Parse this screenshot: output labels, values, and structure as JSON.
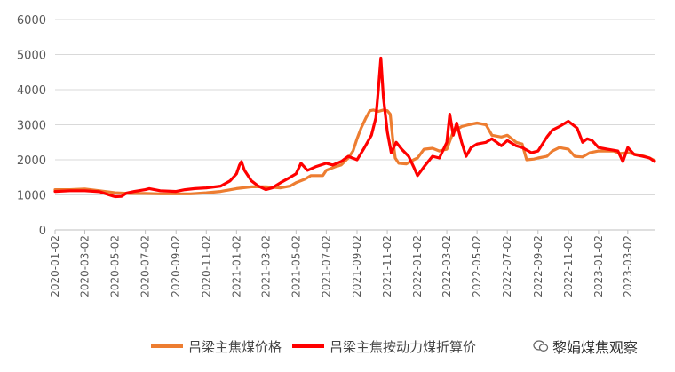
{
  "chart_data": {
    "type": "line",
    "title": "",
    "xlabel": "",
    "ylabel": "",
    "ylim": [
      0,
      6000
    ],
    "yticks": [
      0,
      1000,
      2000,
      3000,
      4000,
      5000,
      6000
    ],
    "xtick_labels": [
      "2020-01-02",
      "2020-03-02",
      "2020-05-02",
      "2020-07-02",
      "2020-09-02",
      "2020-11-02",
      "2021-01-02",
      "2021-03-02",
      "2021-05-02",
      "2021-07-02",
      "2021-09-02",
      "2021-11-02",
      "2022-01-02",
      "2022-03-02",
      "2022-05-02",
      "2022-07-02",
      "2022-09-02",
      "2022-11-02",
      "2023-01-02",
      "2023-03-02"
    ],
    "x_range": [
      "2020-01-02",
      "2023-04-25"
    ],
    "grid": "horizontal",
    "legend_position": "bottom",
    "series": [
      {
        "name": "吕梁主焦煤价格",
        "color": "#ED7D31",
        "points": [
          [
            "2020-01-02",
            1150
          ],
          [
            "2020-02-01",
            1150
          ],
          [
            "2020-03-02",
            1170
          ],
          [
            "2020-04-01",
            1120
          ],
          [
            "2020-05-02",
            1060
          ],
          [
            "2020-06-01",
            1040
          ],
          [
            "2020-07-02",
            1040
          ],
          [
            "2020-08-01",
            1030
          ],
          [
            "2020-09-02",
            1030
          ],
          [
            "2020-10-01",
            1030
          ],
          [
            "2020-11-02",
            1060
          ],
          [
            "2020-12-01",
            1100
          ],
          [
            "2021-01-02",
            1180
          ],
          [
            "2021-02-01",
            1230
          ],
          [
            "2021-03-02",
            1230
          ],
          [
            "2021-04-01",
            1200
          ],
          [
            "2021-04-20",
            1250
          ],
          [
            "2021-05-02",
            1350
          ],
          [
            "2021-05-20",
            1450
          ],
          [
            "2021-06-01",
            1550
          ],
          [
            "2021-06-25",
            1550
          ],
          [
            "2021-07-02",
            1700
          ],
          [
            "2021-07-20",
            1800
          ],
          [
            "2021-08-01",
            1850
          ],
          [
            "2021-08-15",
            2050
          ],
          [
            "2021-08-25",
            2250
          ],
          [
            "2021-09-02",
            2600
          ],
          [
            "2021-09-10",
            2900
          ],
          [
            "2021-09-20",
            3200
          ],
          [
            "2021-09-28",
            3400
          ],
          [
            "2021-10-05",
            3420
          ],
          [
            "2021-10-15",
            3380
          ],
          [
            "2021-10-25",
            3420
          ],
          [
            "2021-11-02",
            3400
          ],
          [
            "2021-11-08",
            3300
          ],
          [
            "2021-11-13",
            2600
          ],
          [
            "2021-11-18",
            2050
          ],
          [
            "2021-11-25",
            1900
          ],
          [
            "2021-12-10",
            1880
          ],
          [
            "2021-12-25",
            2000
          ],
          [
            "2022-01-02",
            2050
          ],
          [
            "2022-01-15",
            2300
          ],
          [
            "2022-02-01",
            2330
          ],
          [
            "2022-02-15",
            2250
          ],
          [
            "2022-03-02",
            2300
          ],
          [
            "2022-03-15",
            2800
          ],
          [
            "2022-04-01",
            2950
          ],
          [
            "2022-04-15",
            3000
          ],
          [
            "2022-05-02",
            3050
          ],
          [
            "2022-05-20",
            3000
          ],
          [
            "2022-06-01",
            2700
          ],
          [
            "2022-06-20",
            2650
          ],
          [
            "2022-07-02",
            2700
          ],
          [
            "2022-07-20",
            2500
          ],
          [
            "2022-08-01",
            2450
          ],
          [
            "2022-08-10",
            2000
          ],
          [
            "2022-08-25",
            2020
          ],
          [
            "2022-09-02",
            2050
          ],
          [
            "2022-09-20",
            2100
          ],
          [
            "2022-10-01",
            2250
          ],
          [
            "2022-10-15",
            2350
          ],
          [
            "2022-11-02",
            2300
          ],
          [
            "2022-11-15",
            2100
          ],
          [
            "2022-12-01",
            2080
          ],
          [
            "2022-12-15",
            2200
          ],
          [
            "2023-01-02",
            2250
          ],
          [
            "2023-01-20",
            2250
          ],
          [
            "2023-02-01",
            2250
          ],
          [
            "2023-02-15",
            2180
          ],
          [
            "2023-03-02",
            2200
          ],
          [
            "2023-03-20",
            2150
          ],
          [
            "2023-04-05",
            2100
          ],
          [
            "2023-04-15",
            2050
          ],
          [
            "2023-04-25",
            1980
          ]
        ]
      },
      {
        "name": "吕梁主焦按动力煤折算价",
        "color": "#FF0000",
        "points": [
          [
            "2020-01-02",
            1100
          ],
          [
            "2020-02-01",
            1120
          ],
          [
            "2020-03-02",
            1120
          ],
          [
            "2020-04-01",
            1090
          ],
          [
            "2020-04-20",
            1000
          ],
          [
            "2020-05-02",
            950
          ],
          [
            "2020-05-15",
            960
          ],
          [
            "2020-05-25",
            1050
          ],
          [
            "2020-06-10",
            1100
          ],
          [
            "2020-07-02",
            1150
          ],
          [
            "2020-07-10",
            1180
          ],
          [
            "2020-08-01",
            1120
          ],
          [
            "2020-09-02",
            1100
          ],
          [
            "2020-09-20",
            1150
          ],
          [
            "2020-10-10",
            1180
          ],
          [
            "2020-11-02",
            1200
          ],
          [
            "2020-12-01",
            1250
          ],
          [
            "2020-12-20",
            1400
          ],
          [
            "2021-01-02",
            1600
          ],
          [
            "2021-01-08",
            1850
          ],
          [
            "2021-01-12",
            1950
          ],
          [
            "2021-01-18",
            1700
          ],
          [
            "2021-02-01",
            1400
          ],
          [
            "2021-02-15",
            1250
          ],
          [
            "2021-03-02",
            1150
          ],
          [
            "2021-03-15",
            1200
          ],
          [
            "2021-04-01",
            1350
          ],
          [
            "2021-04-20",
            1500
          ],
          [
            "2021-05-02",
            1600
          ],
          [
            "2021-05-12",
            1900
          ],
          [
            "2021-05-25",
            1700
          ],
          [
            "2021-06-10",
            1800
          ],
          [
            "2021-07-02",
            1900
          ],
          [
            "2021-07-15",
            1850
          ],
          [
            "2021-08-01",
            1950
          ],
          [
            "2021-08-15",
            2100
          ],
          [
            "2021-09-02",
            2000
          ],
          [
            "2021-09-15",
            2300
          ],
          [
            "2021-10-01",
            2700
          ],
          [
            "2021-10-10",
            3200
          ],
          [
            "2021-10-15",
            4000
          ],
          [
            "2021-10-20",
            4900
          ],
          [
            "2021-10-25",
            3800
          ],
          [
            "2021-11-02",
            2800
          ],
          [
            "2021-11-10",
            2200
          ],
          [
            "2021-11-20",
            2500
          ],
          [
            "2021-12-01",
            2300
          ],
          [
            "2021-12-15",
            2100
          ],
          [
            "2021-12-25",
            1800
          ],
          [
            "2022-01-02",
            1550
          ],
          [
            "2022-01-15",
            1800
          ],
          [
            "2022-02-01",
            2100
          ],
          [
            "2022-02-15",
            2050
          ],
          [
            "2022-03-02",
            2500
          ],
          [
            "2022-03-08",
            3300
          ],
          [
            "2022-03-15",
            2700
          ],
          [
            "2022-03-22",
            3050
          ],
          [
            "2022-04-01",
            2500
          ],
          [
            "2022-04-10",
            2100
          ],
          [
            "2022-04-20",
            2350
          ],
          [
            "2022-05-02",
            2450
          ],
          [
            "2022-05-20",
            2500
          ],
          [
            "2022-06-01",
            2600
          ],
          [
            "2022-06-20",
            2400
          ],
          [
            "2022-07-02",
            2550
          ],
          [
            "2022-07-20",
            2400
          ],
          [
            "2022-08-01",
            2350
          ],
          [
            "2022-08-20",
            2200
          ],
          [
            "2022-09-02",
            2250
          ],
          [
            "2022-09-20",
            2650
          ],
          [
            "2022-10-01",
            2850
          ],
          [
            "2022-10-15",
            2950
          ],
          [
            "2022-11-02",
            3100
          ],
          [
            "2022-11-20",
            2900
          ],
          [
            "2022-12-01",
            2500
          ],
          [
            "2022-12-10",
            2600
          ],
          [
            "2022-12-20",
            2550
          ],
          [
            "2023-01-02",
            2350
          ],
          [
            "2023-01-20",
            2300
          ],
          [
            "2023-02-10",
            2250
          ],
          [
            "2023-02-20",
            1950
          ],
          [
            "2023-03-02",
            2350
          ],
          [
            "2023-03-15",
            2150
          ],
          [
            "2023-04-01",
            2100
          ],
          [
            "2023-04-15",
            2050
          ],
          [
            "2023-04-25",
            1950
          ]
        ]
      }
    ]
  },
  "watermark": {
    "text": "黎娟煤焦观察",
    "icon": "wechat-bubble-icon"
  }
}
